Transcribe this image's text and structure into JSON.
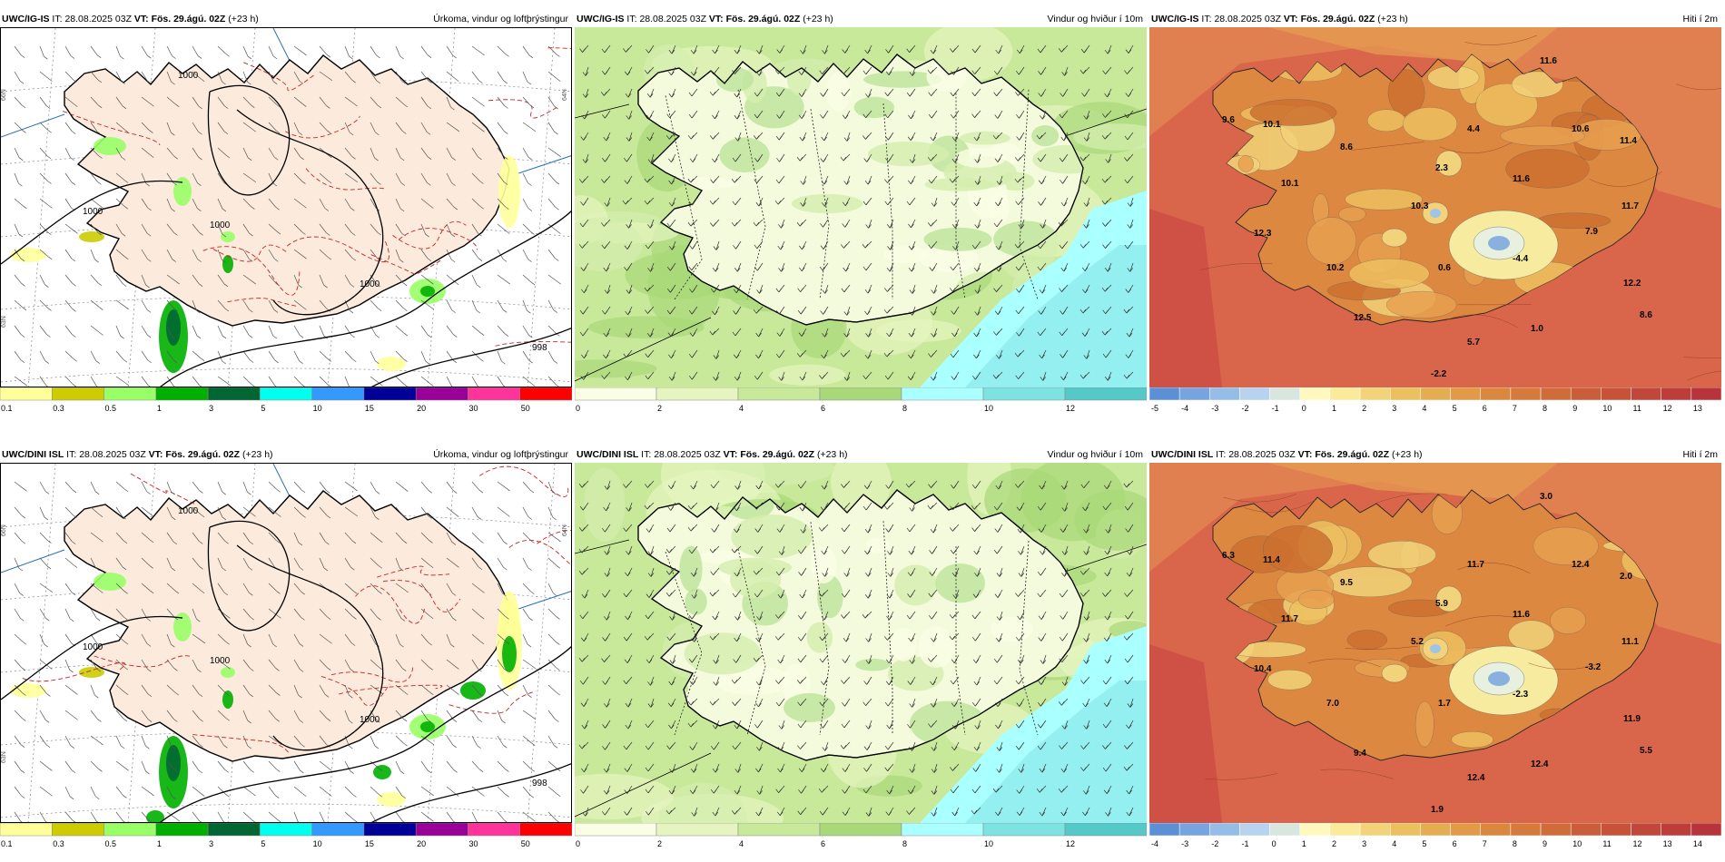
{
  "panels": [
    {
      "model": "UWC/IG-IS",
      "it_label": "IT:",
      "it": "28.08.2025 03Z",
      "vt_label": "VT:",
      "vt": "Fös. 29.ágú. 02Z",
      "lead": "(+23 h)",
      "title": "Úrkoma, vindur og loftþrýstingur",
      "kind": "precip",
      "isobars": [
        "1000",
        "1000",
        "1000",
        "1000",
        "998"
      ],
      "grid_labels": [
        "66N",
        "63N",
        "64N"
      ],
      "colorbar": {
        "ticks": [
          "0.1",
          "0.3",
          "0.5",
          "1",
          "3",
          "5",
          "10",
          "15",
          "20",
          "30",
          "50"
        ],
        "colors": [
          "#ffff99",
          "#cccc00",
          "#99ff66",
          "#00b000",
          "#006633",
          "#00ffee",
          "#3399ff",
          "#000099",
          "#990099",
          "#ff3399",
          "#ff0000"
        ]
      }
    },
    {
      "model": "UWC/IG-IS",
      "it_label": "IT:",
      "it": "28.08.2025 03Z",
      "vt_label": "VT:",
      "vt": "Fös. 29.ágú. 02Z",
      "lead": "(+23 h)",
      "title": "Vindur og hviður í 10m",
      "kind": "wind",
      "colorbar": {
        "ticks": [
          "0",
          "2",
          "4",
          "6",
          "8",
          "10",
          "12"
        ],
        "colors": [
          "#fafee5",
          "#e6f5bf",
          "#c8e89a",
          "#a8d878",
          "#aaffff",
          "#7ee2e2",
          "#55c8c8"
        ]
      }
    },
    {
      "model": "UWC/IG-IS",
      "it_label": "IT:",
      "it": "28.08.2025 03Z",
      "vt_label": "VT:",
      "vt": "Fös. 29.ágú. 02Z",
      "lead": "(+23 h)",
      "title": "Hiti í 2m",
      "kind": "temp",
      "labels": [
        "11.6",
        "9.6",
        "10.1",
        "8.6",
        "4.4",
        "10.6",
        "11.4",
        "2.3",
        "11.6",
        "10.1",
        "10.3",
        "11.7",
        "12.3",
        "7.9",
        "10.2",
        "0.6",
        "-4.4",
        "12.2",
        "12.5",
        "8.6",
        "1.0",
        "5.7",
        "-2.2"
      ],
      "colorbar": {
        "ticks": [
          "-5",
          "-4",
          "-3",
          "-2",
          "-1",
          "0",
          "1",
          "2",
          "3",
          "4",
          "5",
          "6",
          "7",
          "8",
          "9",
          "10",
          "11",
          "12",
          "13"
        ]
      }
    },
    {
      "model": "UWC/DINI ISL",
      "it_label": "IT:",
      "it": "28.08.2025 03Z",
      "vt_label": "VT:",
      "vt": "Fös. 29.ágú. 02Z",
      "lead": "(+23 h)",
      "title": "Úrkoma, vindur og loftþrýstingur",
      "kind": "precip",
      "isobars": [
        "1000",
        "1000",
        "1000",
        "1000",
        "998"
      ],
      "grid_labels": [
        "66N",
        "63N",
        "64N"
      ],
      "colorbar": {
        "ticks": [
          "0.1",
          "0.3",
          "0.5",
          "1",
          "3",
          "5",
          "10",
          "15",
          "20",
          "30",
          "50"
        ],
        "colors": [
          "#ffff99",
          "#cccc00",
          "#99ff66",
          "#00b000",
          "#006633",
          "#00ffee",
          "#3399ff",
          "#000099",
          "#990099",
          "#ff3399",
          "#ff0000"
        ]
      }
    },
    {
      "model": "UWC/DINI ISL",
      "it_label": "IT:",
      "it": "28.08.2025 03Z",
      "vt_label": "VT:",
      "vt": "Fös. 29.ágú. 02Z",
      "lead": "(+23 h)",
      "title": "Vindur og hviður í 10m",
      "kind": "wind",
      "colorbar": {
        "ticks": [
          "0",
          "2",
          "4",
          "6",
          "8",
          "10",
          "12"
        ],
        "colors": [
          "#fafee5",
          "#e6f5bf",
          "#c8e89a",
          "#a8d878",
          "#aaffff",
          "#7ee2e2",
          "#55c8c8"
        ]
      }
    },
    {
      "model": "UWC/DINI ISL",
      "it_label": "IT:",
      "it": "28.08.2025 03Z",
      "vt_label": "VT:",
      "vt": "Fös. 29.ágú. 02Z",
      "lead": "(+23 h)",
      "title": "Hiti í 2m",
      "kind": "temp",
      "labels": [
        "3.0",
        "6.3",
        "11.4",
        "9.5",
        "11.7",
        "12.4",
        "2.0",
        "5.9",
        "11.6",
        "11.7",
        "5.2",
        "11.1",
        "10.4",
        "-3.2",
        "7.0",
        "1.7",
        "-2.3",
        "11.9",
        "9.4",
        "5.5",
        "12.4",
        "12.4",
        "1.9"
      ],
      "colorbar": {
        "ticks": [
          "-4",
          "-3",
          "-2",
          "-1",
          "0",
          "1",
          "2",
          "3",
          "4",
          "5",
          "6",
          "7",
          "8",
          "9",
          "10",
          "11",
          "12",
          "13",
          "14"
        ]
      }
    }
  ]
}
